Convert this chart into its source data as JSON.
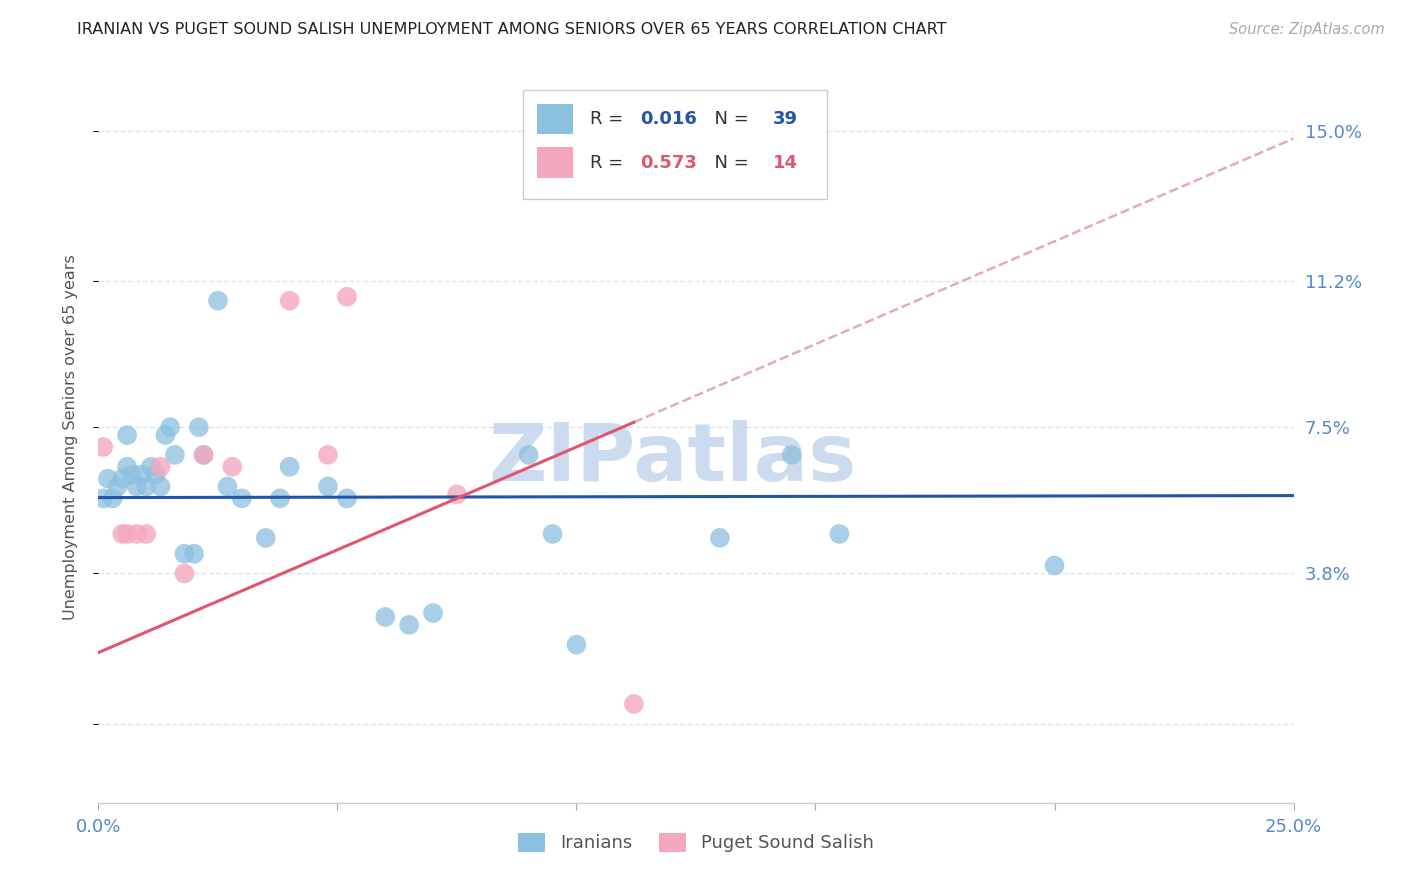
{
  "title": "IRANIAN VS PUGET SOUND SALISH UNEMPLOYMENT AMONG SENIORS OVER 65 YEARS CORRELATION CHART",
  "source": "Source: ZipAtlas.com",
  "ylabel": "Unemployment Among Seniors over 65 years",
  "xlim": [
    0.0,
    0.25
  ],
  "ylim": [
    -0.02,
    0.165
  ],
  "ytick_vals": [
    0.0,
    0.038,
    0.075,
    0.112,
    0.15
  ],
  "ytick_labels": [
    "",
    "3.8%",
    "7.5%",
    "11.2%",
    "15.0%"
  ],
  "xtick_vals": [
    0.0,
    0.05,
    0.1,
    0.15,
    0.2,
    0.25
  ],
  "xtick_labels": [
    "0.0%",
    "",
    "",
    "",
    "",
    "25.0%"
  ],
  "blue_scatter": "#8bbfdf",
  "pink_scatter": "#f4a8be",
  "blue_line_color": "#2255aa",
  "pink_line_color": "#e05570",
  "pink_dash_color": "#e8a8b8",
  "axis_label_color": "#5588cc",
  "grid_color": "#dde5f0",
  "tick_color": "#aaaaaa",
  "r_blue": "0.016",
  "n_blue": "39",
  "r_pink": "0.573",
  "n_pink": "14",
  "blue_trend_intercept": 0.0572,
  "blue_trend_slope": 0.002,
  "pink_trend_intercept": 0.018,
  "pink_trend_slope": 0.52,
  "iranians_x": [
    0.001,
    0.002,
    0.003,
    0.004,
    0.005,
    0.006,
    0.006,
    0.007,
    0.008,
    0.009,
    0.01,
    0.011,
    0.012,
    0.013,
    0.014,
    0.015,
    0.016,
    0.018,
    0.02,
    0.021,
    0.022,
    0.025,
    0.027,
    0.03,
    0.035,
    0.038,
    0.04,
    0.048,
    0.052,
    0.06,
    0.065,
    0.07,
    0.09,
    0.095,
    0.1,
    0.13,
    0.145,
    0.155,
    0.2
  ],
  "iranians_y": [
    0.057,
    0.062,
    0.057,
    0.06,
    0.062,
    0.065,
    0.073,
    0.063,
    0.06,
    0.063,
    0.06,
    0.065,
    0.063,
    0.06,
    0.073,
    0.075,
    0.068,
    0.043,
    0.043,
    0.075,
    0.068,
    0.107,
    0.06,
    0.057,
    0.047,
    0.057,
    0.065,
    0.06,
    0.057,
    0.027,
    0.025,
    0.028,
    0.068,
    0.048,
    0.02,
    0.047,
    0.068,
    0.048,
    0.04
  ],
  "salish_x": [
    0.001,
    0.005,
    0.006,
    0.008,
    0.01,
    0.013,
    0.018,
    0.022,
    0.028,
    0.04,
    0.048,
    0.052,
    0.075,
    0.112
  ],
  "salish_y": [
    0.07,
    0.048,
    0.048,
    0.048,
    0.048,
    0.065,
    0.038,
    0.068,
    0.065,
    0.107,
    0.068,
    0.108,
    0.058,
    0.005
  ],
  "watermark_text": "ZIPatlas",
  "watermark_color": "#c8d8ee",
  "watermark_fontsize": 58
}
